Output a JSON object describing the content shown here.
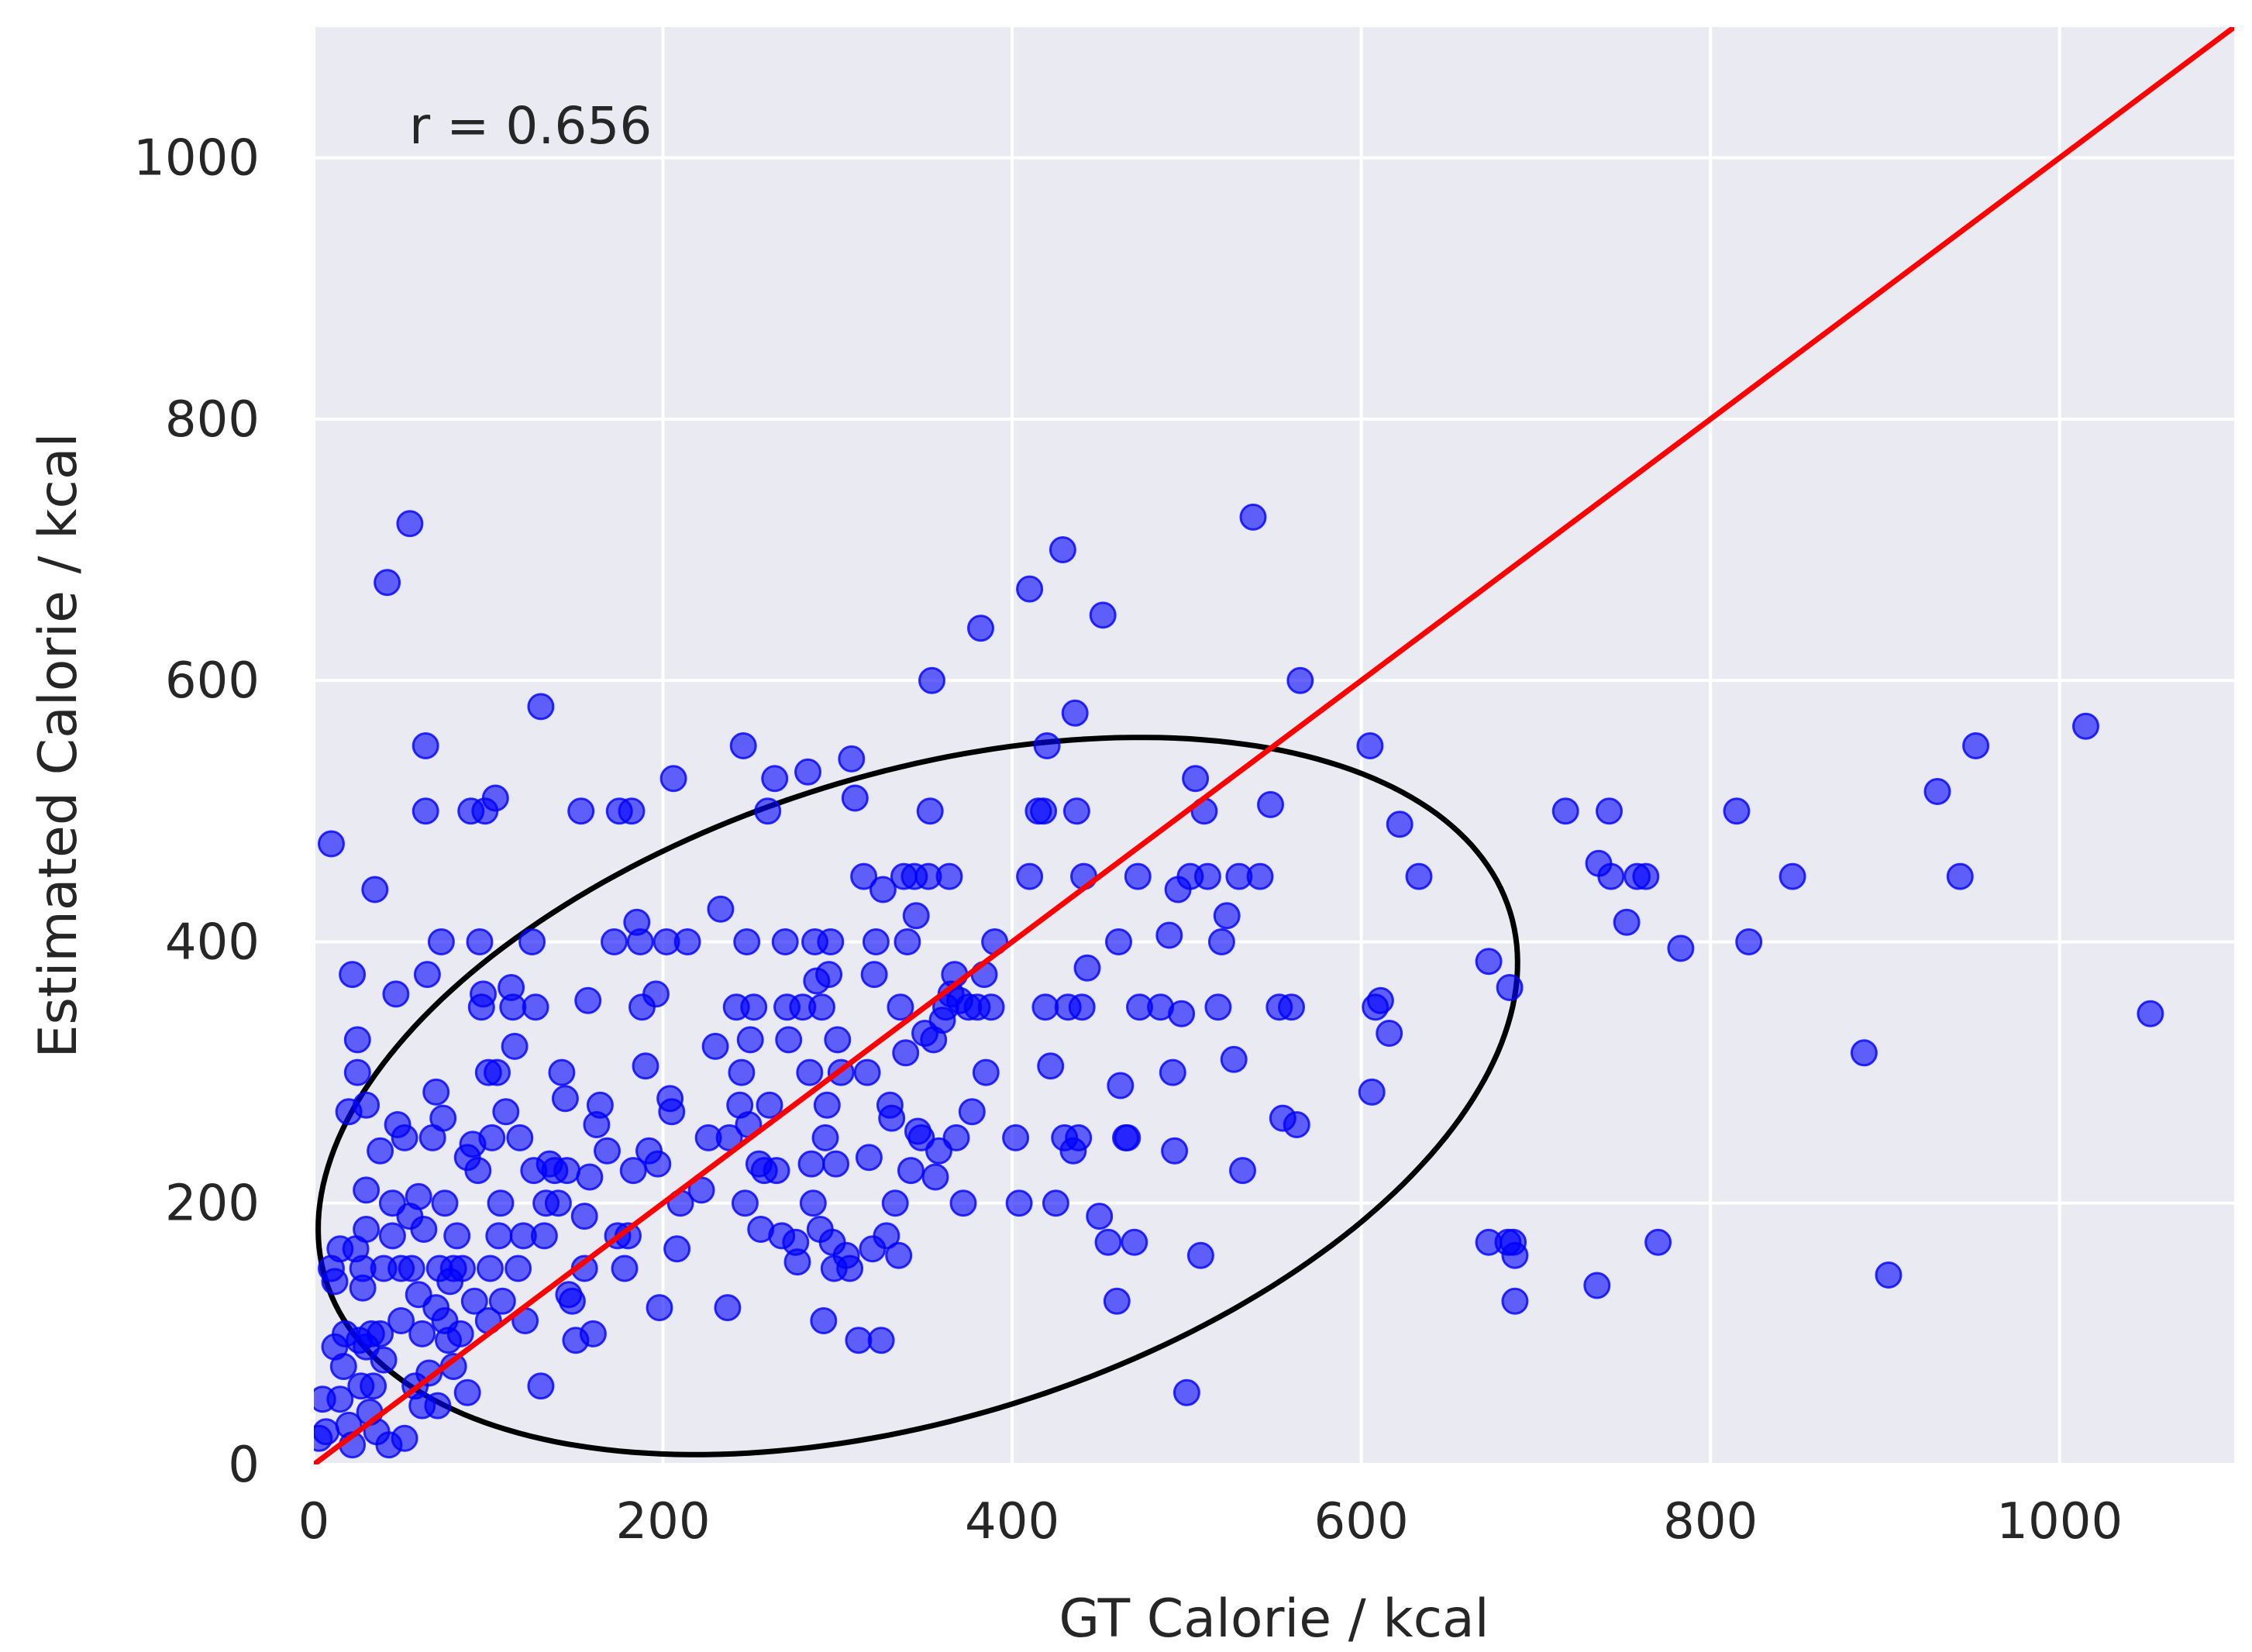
{
  "chart_data": {
    "type": "scatter",
    "xlabel": "GT Calorie / kcal",
    "ylabel": "Estimated Calorie / kcal",
    "xlim": [
      0,
      1100
    ],
    "ylim": [
      0,
      1100
    ],
    "xticks": [
      "0",
      "200",
      "400",
      "600",
      "800",
      "1000"
    ],
    "yticks": [
      "0",
      "200",
      "400",
      "600",
      "800",
      "1000"
    ],
    "grid": true,
    "background_color": "#eaeaf2",
    "annotation": "r = 0.656",
    "point_color": "#0000ff",
    "identity_line": {
      "color": "#ff0000",
      "from": [
        0,
        0
      ],
      "to": [
        1100,
        1100
      ]
    },
    "ellipse": {
      "color": "#000000",
      "center": [
        346,
        282
      ],
      "rx": 371,
      "ry": 236,
      "angle_deg": 29.3
    },
    "points": [
      [
        3,
        20
      ],
      [
        5,
        50
      ],
      [
        7,
        25
      ],
      [
        10,
        475
      ],
      [
        10,
        150
      ],
      [
        12,
        90
      ],
      [
        12,
        140
      ],
      [
        15,
        165
      ],
      [
        15,
        50
      ],
      [
        17,
        75
      ],
      [
        18,
        100
      ],
      [
        20,
        270
      ],
      [
        20,
        30
      ],
      [
        22,
        15
      ],
      [
        22,
        375
      ],
      [
        24,
        165
      ],
      [
        25,
        325
      ],
      [
        25,
        300
      ],
      [
        26,
        95
      ],
      [
        27,
        60
      ],
      [
        28,
        150
      ],
      [
        28,
        135
      ],
      [
        30,
        275
      ],
      [
        30,
        180
      ],
      [
        30,
        210
      ],
      [
        30,
        90
      ],
      [
        32,
        40
      ],
      [
        33,
        100
      ],
      [
        34,
        60
      ],
      [
        35,
        440
      ],
      [
        36,
        25
      ],
      [
        38,
        240
      ],
      [
        38,
        100
      ],
      [
        40,
        150
      ],
      [
        40,
        80
      ],
      [
        42,
        675
      ],
      [
        43,
        15
      ],
      [
        45,
        200
      ],
      [
        45,
        175
      ],
      [
        47,
        360
      ],
      [
        48,
        260
      ],
      [
        50,
        150
      ],
      [
        50,
        110
      ],
      [
        52,
        250
      ],
      [
        52,
        20
      ],
      [
        55,
        720
      ],
      [
        55,
        190
      ],
      [
        56,
        150
      ],
      [
        58,
        60
      ],
      [
        60,
        205
      ],
      [
        60,
        130
      ],
      [
        62,
        45
      ],
      [
        62,
        100
      ],
      [
        63,
        180
      ],
      [
        64,
        550
      ],
      [
        64,
        500
      ],
      [
        65,
        375
      ],
      [
        66,
        70
      ],
      [
        68,
        250
      ],
      [
        70,
        120
      ],
      [
        70,
        285
      ],
      [
        71,
        45
      ],
      [
        72,
        150
      ],
      [
        73,
        400
      ],
      [
        74,
        265
      ],
      [
        75,
        200
      ],
      [
        75,
        110
      ],
      [
        77,
        95
      ],
      [
        78,
        140
      ],
      [
        80,
        150
      ],
      [
        80,
        75
      ],
      [
        82,
        175
      ],
      [
        84,
        100
      ],
      [
        85,
        150
      ],
      [
        88,
        55
      ],
      [
        88,
        235
      ],
      [
        90,
        500
      ],
      [
        91,
        245
      ],
      [
        92,
        125
      ],
      [
        94,
        225
      ],
      [
        95,
        400
      ],
      [
        96,
        350
      ],
      [
        97,
        360
      ],
      [
        98,
        500
      ],
      [
        100,
        300
      ],
      [
        100,
        110
      ],
      [
        101,
        150
      ],
      [
        102,
        250
      ],
      [
        104,
        510
      ],
      [
        105,
        300
      ],
      [
        106,
        175
      ],
      [
        107,
        200
      ],
      [
        108,
        125
      ],
      [
        110,
        270
      ],
      [
        113,
        365
      ],
      [
        114,
        350
      ],
      [
        115,
        320
      ],
      [
        117,
        150
      ],
      [
        118,
        250
      ],
      [
        120,
        175
      ],
      [
        121,
        110
      ],
      [
        125,
        400
      ],
      [
        126,
        225
      ],
      [
        127,
        350
      ],
      [
        130,
        580
      ],
      [
        130,
        60
      ],
      [
        132,
        175
      ],
      [
        133,
        200
      ],
      [
        135,
        230
      ],
      [
        138,
        225
      ],
      [
        140,
        200
      ],
      [
        142,
        300
      ],
      [
        144,
        280
      ],
      [
        145,
        225
      ],
      [
        146,
        130
      ],
      [
        148,
        125
      ],
      [
        150,
        95
      ],
      [
        153,
        500
      ],
      [
        155,
        150
      ],
      [
        155,
        190
      ],
      [
        157,
        355
      ],
      [
        158,
        220
      ],
      [
        160,
        100
      ],
      [
        162,
        260
      ],
      [
        164,
        275
      ],
      [
        168,
        240
      ],
      [
        172,
        400
      ],
      [
        174,
        175
      ],
      [
        175,
        500
      ],
      [
        178,
        150
      ],
      [
        180,
        175
      ],
      [
        182,
        500
      ],
      [
        183,
        225
      ],
      [
        185,
        415
      ],
      [
        187,
        400
      ],
      [
        188,
        350
      ],
      [
        190,
        305
      ],
      [
        192,
        240
      ],
      [
        196,
        360
      ],
      [
        197,
        230
      ],
      [
        198,
        120
      ],
      [
        202,
        400
      ],
      [
        204,
        280
      ],
      [
        205,
        270
      ],
      [
        206,
        525
      ],
      [
        208,
        165
      ],
      [
        210,
        200
      ],
      [
        214,
        400
      ],
      [
        222,
        210
      ],
      [
        226,
        250
      ],
      [
        230,
        320
      ],
      [
        233,
        425
      ],
      [
        237,
        120
      ],
      [
        238,
        250
      ],
      [
        242,
        350
      ],
      [
        244,
        275
      ],
      [
        245,
        300
      ],
      [
        246,
        550
      ],
      [
        247,
        200
      ],
      [
        248,
        400
      ],
      [
        249,
        260
      ],
      [
        250,
        325
      ],
      [
        252,
        350
      ],
      [
        255,
        230
      ],
      [
        256,
        180
      ],
      [
        258,
        225
      ],
      [
        260,
        500
      ],
      [
        261,
        275
      ],
      [
        264,
        525
      ],
      [
        265,
        225
      ],
      [
        268,
        175
      ],
      [
        270,
        400
      ],
      [
        271,
        350
      ],
      [
        272,
        325
      ],
      [
        276,
        170
      ],
      [
        277,
        155
      ],
      [
        280,
        350
      ],
      [
        283,
        530
      ],
      [
        284,
        300
      ],
      [
        285,
        230
      ],
      [
        286,
        200
      ],
      [
        287,
        400
      ],
      [
        288,
        370
      ],
      [
        290,
        180
      ],
      [
        291,
        350
      ],
      [
        292,
        110
      ],
      [
        293,
        250
      ],
      [
        294,
        275
      ],
      [
        295,
        375
      ],
      [
        296,
        400
      ],
      [
        297,
        170
      ],
      [
        298,
        150
      ],
      [
        299,
        230
      ],
      [
        300,
        325
      ],
      [
        302,
        300
      ],
      [
        305,
        160
      ],
      [
        307,
        150
      ],
      [
        308,
        540
      ],
      [
        310,
        510
      ],
      [
        312,
        95
      ],
      [
        315,
        450
      ],
      [
        317,
        300
      ],
      [
        318,
        235
      ],
      [
        320,
        165
      ],
      [
        321,
        375
      ],
      [
        322,
        400
      ],
      [
        325,
        95
      ],
      [
        326,
        440
      ],
      [
        328,
        175
      ],
      [
        330,
        275
      ],
      [
        331,
        265
      ],
      [
        333,
        200
      ],
      [
        335,
        160
      ],
      [
        336,
        350
      ],
      [
        338,
        450
      ],
      [
        339,
        315
      ],
      [
        340,
        400
      ],
      [
        342,
        225
      ],
      [
        344,
        450
      ],
      [
        345,
        420
      ],
      [
        346,
        255
      ],
      [
        348,
        250
      ],
      [
        350,
        330
      ],
      [
        352,
        450
      ],
      [
        353,
        500
      ],
      [
        354,
        600
      ],
      [
        355,
        325
      ],
      [
        356,
        220
      ],
      [
        358,
        240
      ],
      [
        360,
        340
      ],
      [
        362,
        350
      ],
      [
        364,
        450
      ],
      [
        365,
        360
      ],
      [
        367,
        375
      ],
      [
        368,
        250
      ],
      [
        370,
        355
      ],
      [
        372,
        200
      ],
      [
        375,
        350
      ],
      [
        377,
        270
      ],
      [
        380,
        350
      ],
      [
        382,
        640
      ],
      [
        384,
        375
      ],
      [
        385,
        300
      ],
      [
        388,
        350
      ],
      [
        390,
        400
      ],
      [
        402,
        250
      ],
      [
        404,
        200
      ],
      [
        410,
        670
      ],
      [
        410,
        450
      ],
      [
        415,
        500
      ],
      [
        418,
        500
      ],
      [
        419,
        350
      ],
      [
        420,
        550
      ],
      [
        422,
        305
      ],
      [
        425,
        200
      ],
      [
        429,
        700
      ],
      [
        430,
        250
      ],
      [
        432,
        350
      ],
      [
        435,
        240
      ],
      [
        436,
        575
      ],
      [
        437,
        500
      ],
      [
        438,
        250
      ],
      [
        440,
        350
      ],
      [
        441,
        450
      ],
      [
        443,
        380
      ],
      [
        450,
        190
      ],
      [
        452,
        650
      ],
      [
        455,
        170
      ],
      [
        460,
        125
      ],
      [
        461,
        400
      ],
      [
        462,
        290
      ],
      [
        465,
        250
      ],
      [
        466,
        250
      ],
      [
        470,
        170
      ],
      [
        472,
        450
      ],
      [
        473,
        350
      ],
      [
        485,
        350
      ],
      [
        490,
        405
      ],
      [
        492,
        300
      ],
      [
        493,
        240
      ],
      [
        495,
        440
      ],
      [
        497,
        345
      ],
      [
        500,
        55
      ],
      [
        502,
        450
      ],
      [
        505,
        525
      ],
      [
        508,
        160
      ],
      [
        510,
        500
      ],
      [
        512,
        450
      ],
      [
        518,
        350
      ],
      [
        520,
        400
      ],
      [
        523,
        420
      ],
      [
        527,
        310
      ],
      [
        530,
        450
      ],
      [
        532,
        225
      ],
      [
        538,
        725
      ],
      [
        542,
        450
      ],
      [
        548,
        505
      ],
      [
        553,
        350
      ],
      [
        555,
        265
      ],
      [
        560,
        350
      ],
      [
        563,
        260
      ],
      [
        565,
        600
      ],
      [
        605,
        550
      ],
      [
        606,
        285
      ],
      [
        608,
        350
      ],
      [
        611,
        355
      ],
      [
        616,
        330
      ],
      [
        622,
        490
      ],
      [
        633,
        450
      ],
      [
        673,
        385
      ],
      [
        673,
        170
      ],
      [
        684,
        170
      ],
      [
        685,
        365
      ],
      [
        687,
        170
      ],
      [
        688,
        160
      ],
      [
        688,
        125
      ],
      [
        717,
        500
      ],
      [
        735,
        137
      ],
      [
        736,
        460
      ],
      [
        742,
        500
      ],
      [
        743,
        450
      ],
      [
        752,
        415
      ],
      [
        758,
        450
      ],
      [
        763,
        450
      ],
      [
        770,
        170
      ],
      [
        783,
        395
      ],
      [
        815,
        500
      ],
      [
        822,
        400
      ],
      [
        847,
        450
      ],
      [
        888,
        315
      ],
      [
        902,
        145
      ],
      [
        930,
        515
      ],
      [
        943,
        450
      ],
      [
        952,
        550
      ],
      [
        1015,
        565
      ],
      [
        1052,
        345
      ]
    ]
  }
}
